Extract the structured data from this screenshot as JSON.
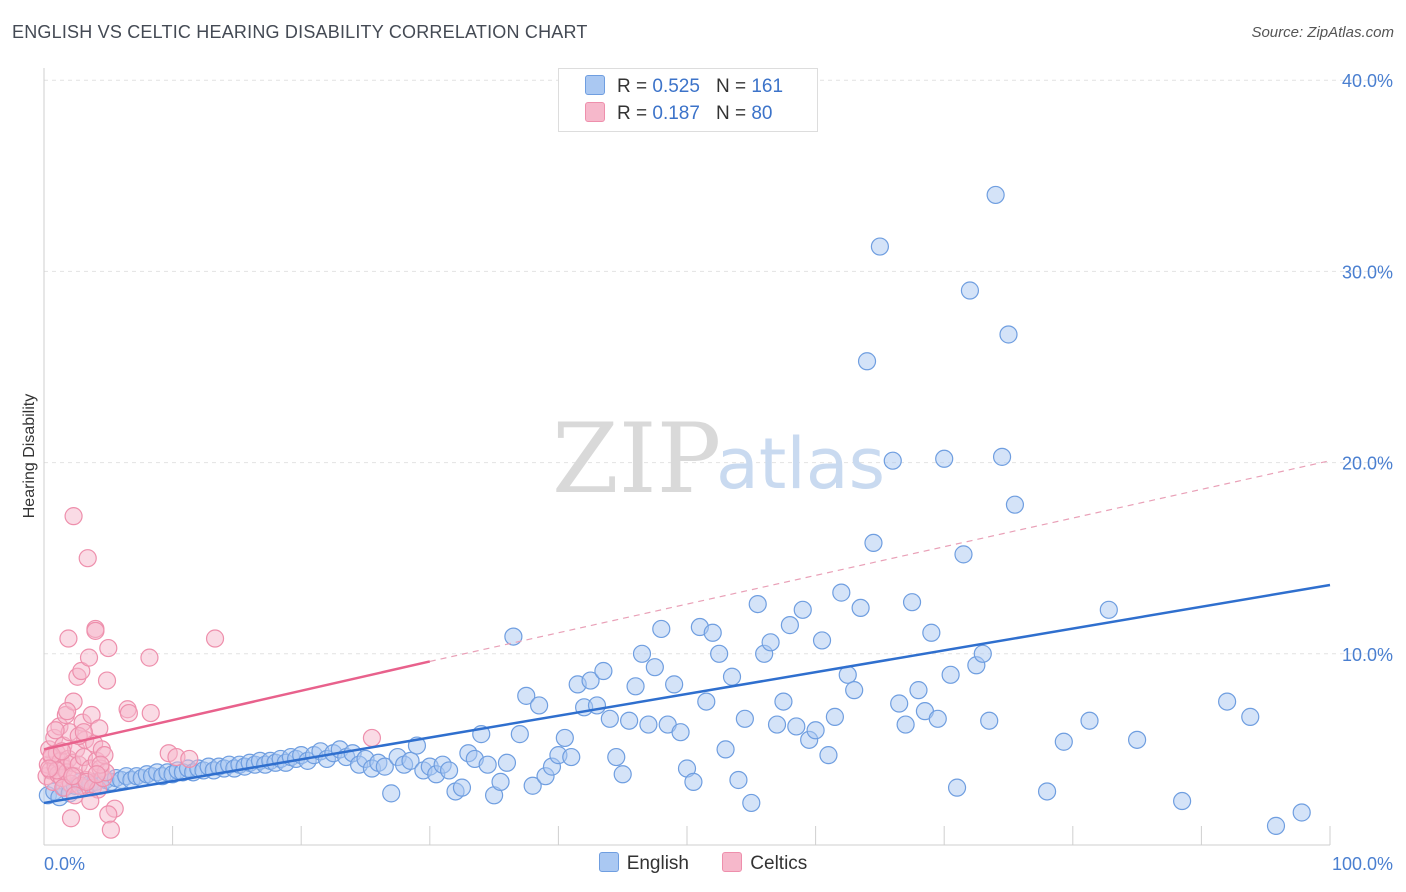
{
  "header": {
    "title": "ENGLISH VS CELTIC HEARING DISABILITY CORRELATION CHART",
    "source": "Source: ZipAtlas.com"
  },
  "watermark": {
    "zip": "ZIP",
    "atlas": "atlas"
  },
  "legend": {
    "r_label": "R =",
    "n_label": "N =",
    "rows": [
      {
        "r": "0.525",
        "n": "161"
      },
      {
        "r": "0.187",
        "n": "80"
      }
    ]
  },
  "colors": {
    "english_fill": "#aac8f2",
    "english_stroke": "#6f9ee0",
    "english_line": "#2f6fce",
    "celtic_fill": "#f6b8cb",
    "celtic_stroke": "#ee8fac",
    "celtic_line": "#e8618c",
    "tick_color": "#4a7fd0"
  },
  "chart_data": {
    "type": "scatter",
    "title": "ENGLISH VS CELTIC HEARING DISABILITY CORRELATION CHART",
    "xlabel": "",
    "ylabel": "Hearing Disability",
    "xlim": [
      0,
      100
    ],
    "ylim": [
      0,
      42
    ],
    "x_ticks": [
      {
        "value": 0,
        "label": "0.0%"
      },
      {
        "value": 100,
        "label": "100.0%"
      }
    ],
    "y_ticks": [
      {
        "value": 10,
        "label": "10.0%"
      },
      {
        "value": 20,
        "label": "20.0%"
      },
      {
        "value": 30,
        "label": "30.0%"
      },
      {
        "value": 40,
        "label": "40.0%"
      }
    ],
    "legend_position": "top-center",
    "grid": "horizontal dashed",
    "series": [
      {
        "name": "English",
        "r": 0.525,
        "n": 161,
        "trend": {
          "x": [
            0,
            100
          ],
          "y": [
            2.2,
            13.6
          ],
          "style": "solid"
        },
        "points": [
          [
            0.3,
            2.6
          ],
          [
            0.8,
            2.8
          ],
          [
            1.2,
            2.5
          ],
          [
            1.6,
            3.0
          ],
          [
            2.0,
            2.7
          ],
          [
            2.4,
            3.1
          ],
          [
            2.8,
            3.3
          ],
          [
            3.2,
            3.0
          ],
          [
            3.6,
            3.2
          ],
          [
            4.0,
            3.3
          ],
          [
            4.4,
            3.1
          ],
          [
            4.8,
            3.4
          ],
          [
            5.2,
            3.3
          ],
          [
            5.6,
            3.5
          ],
          [
            6.0,
            3.4
          ],
          [
            6.4,
            3.6
          ],
          [
            6.8,
            3.4
          ],
          [
            7.2,
            3.6
          ],
          [
            7.6,
            3.5
          ],
          [
            8.0,
            3.7
          ],
          [
            8.4,
            3.6
          ],
          [
            8.8,
            3.8
          ],
          [
            9.2,
            3.6
          ],
          [
            9.6,
            3.8
          ],
          [
            10.0,
            3.7
          ],
          [
            10.4,
            3.9
          ],
          [
            10.8,
            3.8
          ],
          [
            11.2,
            4.0
          ],
          [
            11.6,
            3.8
          ],
          [
            12.0,
            4.0
          ],
          [
            12.4,
            3.9
          ],
          [
            12.8,
            4.1
          ],
          [
            13.2,
            3.9
          ],
          [
            13.6,
            4.1
          ],
          [
            14.0,
            4.0
          ],
          [
            14.4,
            4.2
          ],
          [
            14.8,
            4.0
          ],
          [
            15.2,
            4.2
          ],
          [
            15.6,
            4.1
          ],
          [
            16.0,
            4.3
          ],
          [
            16.4,
            4.2
          ],
          [
            16.8,
            4.4
          ],
          [
            17.2,
            4.2
          ],
          [
            17.6,
            4.4
          ],
          [
            18.0,
            4.3
          ],
          [
            18.4,
            4.5
          ],
          [
            18.8,
            4.3
          ],
          [
            19.2,
            4.6
          ],
          [
            19.6,
            4.5
          ],
          [
            20.0,
            4.7
          ],
          [
            20.5,
            4.4
          ],
          [
            21.0,
            4.7
          ],
          [
            21.5,
            4.9
          ],
          [
            22.0,
            4.5
          ],
          [
            22.5,
            4.8
          ],
          [
            23.0,
            5.0
          ],
          [
            23.5,
            4.6
          ],
          [
            24.0,
            4.8
          ],
          [
            24.5,
            4.2
          ],
          [
            25.0,
            4.5
          ],
          [
            25.5,
            4.0
          ],
          [
            26.0,
            4.3
          ],
          [
            26.5,
            4.1
          ],
          [
            27.0,
            2.7
          ],
          [
            27.5,
            4.6
          ],
          [
            28.0,
            4.2
          ],
          [
            28.5,
            4.4
          ],
          [
            29.0,
            5.2
          ],
          [
            29.5,
            3.9
          ],
          [
            30.0,
            4.1
          ],
          [
            30.5,
            3.7
          ],
          [
            31.0,
            4.2
          ],
          [
            31.5,
            3.9
          ],
          [
            32.0,
            2.8
          ],
          [
            32.5,
            3.0
          ],
          [
            33.0,
            4.8
          ],
          [
            33.5,
            4.5
          ],
          [
            34.0,
            5.8
          ],
          [
            34.5,
            4.2
          ],
          [
            35.0,
            2.6
          ],
          [
            35.5,
            3.3
          ],
          [
            36.0,
            4.3
          ],
          [
            36.5,
            10.9
          ],
          [
            37.0,
            5.8
          ],
          [
            37.5,
            7.8
          ],
          [
            38.0,
            3.1
          ],
          [
            38.5,
            7.3
          ],
          [
            39.0,
            3.6
          ],
          [
            39.5,
            4.1
          ],
          [
            40.0,
            4.7
          ],
          [
            40.5,
            5.6
          ],
          [
            41.0,
            4.6
          ],
          [
            41.5,
            8.4
          ],
          [
            42.0,
            7.2
          ],
          [
            42.5,
            8.6
          ],
          [
            43.0,
            7.3
          ],
          [
            43.5,
            9.1
          ],
          [
            44.0,
            6.6
          ],
          [
            44.5,
            4.6
          ],
          [
            45.0,
            3.7
          ],
          [
            45.5,
            6.5
          ],
          [
            46.0,
            8.3
          ],
          [
            46.5,
            10.0
          ],
          [
            47.0,
            6.3
          ],
          [
            47.5,
            9.3
          ],
          [
            48.0,
            11.3
          ],
          [
            48.5,
            6.3
          ],
          [
            49.0,
            8.4
          ],
          [
            49.5,
            5.9
          ],
          [
            50.0,
            4.0
          ],
          [
            50.5,
            3.3
          ],
          [
            51.0,
            11.4
          ],
          [
            51.5,
            7.5
          ],
          [
            52.0,
            11.1
          ],
          [
            52.5,
            10.0
          ],
          [
            53.0,
            5.0
          ],
          [
            53.5,
            8.8
          ],
          [
            54.0,
            3.4
          ],
          [
            54.5,
            6.6
          ],
          [
            55.0,
            2.2
          ],
          [
            55.5,
            12.6
          ],
          [
            56.0,
            10.0
          ],
          [
            56.5,
            10.6
          ],
          [
            57.0,
            6.3
          ],
          [
            57.5,
            7.5
          ],
          [
            58.0,
            11.5
          ],
          [
            58.5,
            6.2
          ],
          [
            59.0,
            12.3
          ],
          [
            59.5,
            5.5
          ],
          [
            60.0,
            6.0
          ],
          [
            60.5,
            10.7
          ],
          [
            61.0,
            4.7
          ],
          [
            61.5,
            6.7
          ],
          [
            62.0,
            13.2
          ],
          [
            62.5,
            8.9
          ],
          [
            63.0,
            8.1
          ],
          [
            63.5,
            12.4
          ],
          [
            64.0,
            25.3
          ],
          [
            64.5,
            15.8
          ],
          [
            65.0,
            31.3
          ],
          [
            66.0,
            20.1
          ],
          [
            66.5,
            7.4
          ],
          [
            67.0,
            6.3
          ],
          [
            67.5,
            12.7
          ],
          [
            68.0,
            8.1
          ],
          [
            68.5,
            7.0
          ],
          [
            69.0,
            11.1
          ],
          [
            69.5,
            6.6
          ],
          [
            70.0,
            20.2
          ],
          [
            70.5,
            8.9
          ],
          [
            71.0,
            3.0
          ],
          [
            71.5,
            15.2
          ],
          [
            72.0,
            29.0
          ],
          [
            72.5,
            9.4
          ],
          [
            73.0,
            10.0
          ],
          [
            73.5,
            6.5
          ],
          [
            74.0,
            34.0
          ],
          [
            74.5,
            20.3
          ],
          [
            75.0,
            26.7
          ],
          [
            75.5,
            17.8
          ],
          [
            95.8,
            1.0
          ],
          [
            97.8,
            1.7
          ],
          [
            92.0,
            7.5
          ],
          [
            93.8,
            6.7
          ],
          [
            88.5,
            2.3
          ],
          [
            85.0,
            5.5
          ],
          [
            78.0,
            2.8
          ],
          [
            79.3,
            5.4
          ],
          [
            81.3,
            6.5
          ],
          [
            82.8,
            12.3
          ]
        ]
      },
      {
        "name": "Celtics",
        "r": 0.187,
        "n": 80,
        "trend": {
          "x": [
            0,
            30
          ],
          "y": [
            5.0,
            9.6
          ],
          "style": "solid"
        },
        "trend_extended": {
          "x": [
            30,
            100
          ],
          "y": [
            9.6,
            20.1
          ],
          "style": "dashed"
        },
        "points": [
          [
            0.2,
            3.6
          ],
          [
            0.3,
            4.2
          ],
          [
            0.4,
            5.0
          ],
          [
            0.5,
            3.9
          ],
          [
            0.6,
            4.6
          ],
          [
            0.7,
            3.3
          ],
          [
            0.8,
            5.6
          ],
          [
            0.9,
            4.1
          ],
          [
            1.0,
            4.8
          ],
          [
            1.1,
            3.7
          ],
          [
            1.2,
            6.2
          ],
          [
            1.3,
            4.4
          ],
          [
            1.4,
            3.5
          ],
          [
            1.5,
            5.2
          ],
          [
            1.6,
            4.0
          ],
          [
            1.7,
            6.8
          ],
          [
            1.8,
            3.8
          ],
          [
            1.9,
            4.5
          ],
          [
            2.0,
            5.9
          ],
          [
            2.1,
            3.2
          ],
          [
            2.2,
            4.3
          ],
          [
            2.3,
            7.5
          ],
          [
            2.4,
            3.6
          ],
          [
            2.5,
            5.0
          ],
          [
            2.6,
            8.8
          ],
          [
            2.7,
            4.2
          ],
          [
            2.8,
            3.1
          ],
          [
            2.9,
            9.1
          ],
          [
            3.0,
            6.4
          ],
          [
            3.1,
            4.6
          ],
          [
            3.2,
            5.5
          ],
          [
            3.3,
            3.4
          ],
          [
            3.4,
            15.0
          ],
          [
            3.5,
            9.8
          ],
          [
            3.6,
            4.0
          ],
          [
            3.7,
            6.8
          ],
          [
            3.8,
            3.0
          ],
          [
            3.9,
            5.3
          ],
          [
            4.0,
            11.3
          ],
          [
            4.1,
            4.4
          ],
          [
            4.2,
            2.9
          ],
          [
            4.3,
            6.1
          ],
          [
            4.4,
            4.0
          ],
          [
            4.5,
            5.0
          ],
          [
            4.6,
            3.5
          ],
          [
            4.7,
            4.7
          ],
          [
            4.8,
            3.8
          ],
          [
            4.9,
            8.6
          ],
          [
            5.0,
            10.3
          ],
          [
            5.5,
            1.9
          ],
          [
            6.5,
            7.1
          ],
          [
            6.6,
            6.9
          ],
          [
            8.2,
            9.8
          ],
          [
            8.3,
            6.9
          ],
          [
            9.7,
            4.8
          ],
          [
            10.3,
            4.6
          ],
          [
            11.3,
            4.5
          ],
          [
            13.3,
            10.8
          ],
          [
            25.5,
            5.6
          ],
          [
            2.3,
            17.2
          ],
          [
            1.9,
            10.8
          ],
          [
            4.0,
            11.2
          ],
          [
            5.0,
            1.6
          ],
          [
            5.2,
            0.8
          ],
          [
            2.1,
            1.4
          ],
          [
            1.5,
            3.0
          ],
          [
            2.4,
            2.6
          ],
          [
            3.3,
            3.3
          ],
          [
            0.6,
            4.7
          ],
          [
            1.0,
            3.9
          ],
          [
            1.8,
            7.0
          ],
          [
            2.7,
            5.7
          ],
          [
            3.6,
            2.3
          ],
          [
            4.4,
            4.2
          ],
          [
            0.9,
            6.0
          ],
          [
            1.4,
            4.9
          ],
          [
            2.2,
            3.6
          ],
          [
            3.1,
            5.9
          ],
          [
            4.1,
            3.7
          ],
          [
            0.4,
            4.0
          ]
        ]
      }
    ]
  }
}
